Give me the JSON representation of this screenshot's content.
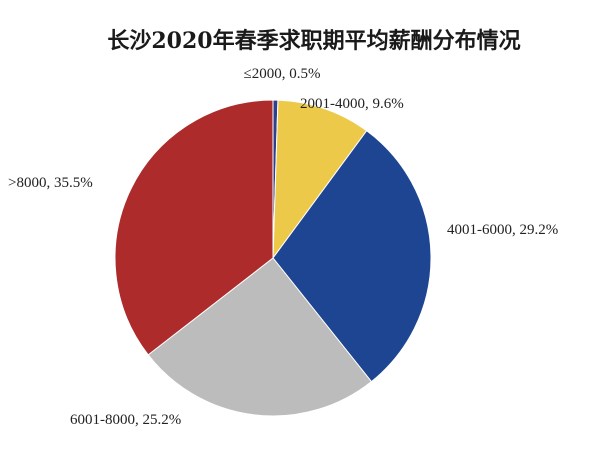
{
  "chart_data": {
    "type": "pie",
    "title": "长沙2020年春季求职期平均薪酬分布情况",
    "start_angle_deg": 0,
    "direction": "clockwise",
    "slices": [
      {
        "label": "≤2000",
        "value": 0.5,
        "display": "≤2000, 0.5%",
        "color": "#2f3e8f"
      },
      {
        "label": "2001-4000",
        "value": 9.6,
        "display": "2001-4000, 9.6%",
        "color": "#edc94a"
      },
      {
        "label": "4001-6000",
        "value": 29.2,
        "display": "4001-6000, 29.2%",
        "color": "#1e4592"
      },
      {
        "label": "6001-8000",
        "value": 25.2,
        "display": "6001-8000, 25.2%",
        "color": "#bcbcbc"
      },
      {
        "label": ">8000",
        "value": 35.5,
        "display": ">8000, 35.5%",
        "color": "#ad2b2b"
      }
    ]
  }
}
